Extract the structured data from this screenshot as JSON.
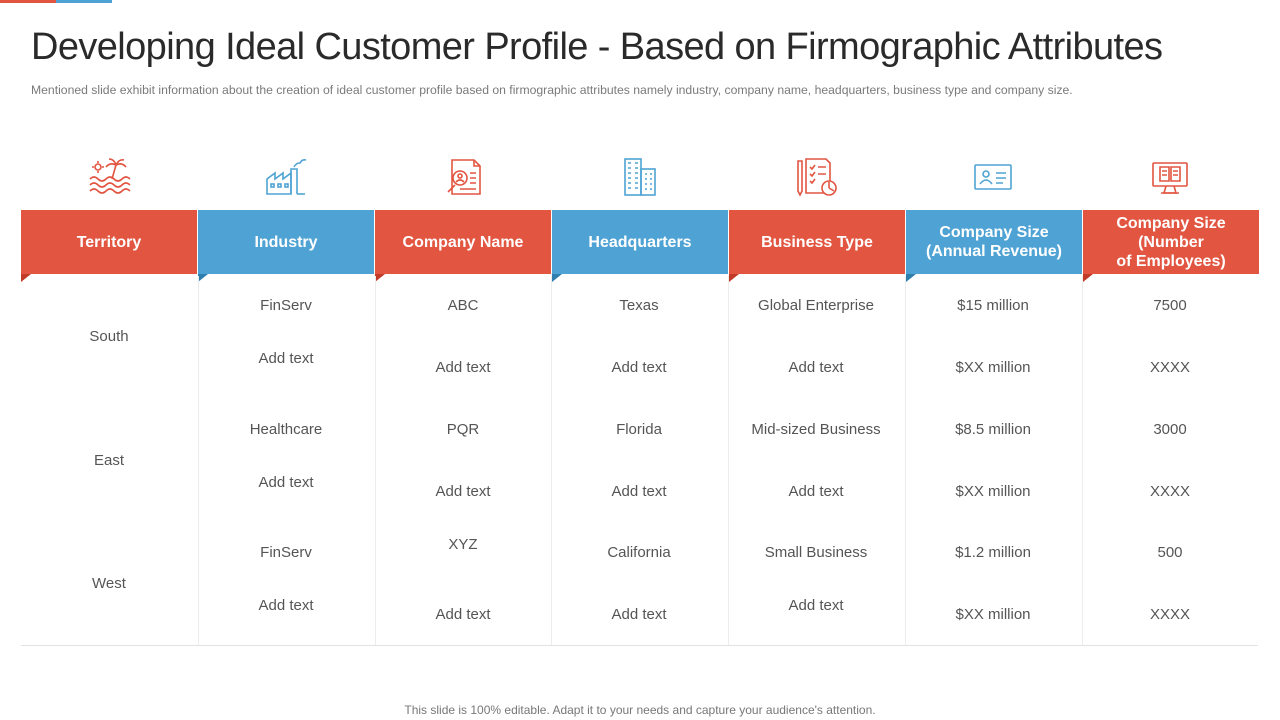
{
  "title": "Developing Ideal Customer Profile - Based on Firmographic Attributes",
  "subtitle": "Mentioned slide exhibit information  about the creation of ideal customer profile  based on firmographic  attributes namely industry, company name, headquarters,  business type and company size.",
  "colors": {
    "red": "#e25540",
    "blue": "#4fa3d4"
  },
  "columns": [
    {
      "label": "Territory",
      "icon": "wave-palm-icon",
      "color": "red"
    },
    {
      "label": "Industry",
      "icon": "factory-icon",
      "color": "blue"
    },
    {
      "label": "Company Name",
      "icon": "id-document-search-icon",
      "color": "red"
    },
    {
      "label": "Headquarters",
      "icon": "office-building-icon",
      "color": "blue"
    },
    {
      "label": "Business Type",
      "icon": "clipboard-chart-icon",
      "color": "red"
    },
    {
      "label": "Company Size\n(Annual Revenue)",
      "icon": "id-card-icon",
      "color": "blue"
    },
    {
      "label": "Company Size\n(Number\nof Employees)",
      "icon": "computer-monitor-icon",
      "color": "red"
    }
  ],
  "territories": [
    "South",
    "East",
    "West"
  ],
  "rows": [
    {
      "industry": "FinServ",
      "company_name": "ABC",
      "headquarters": "Texas",
      "business_type": "Global Enterprise",
      "revenue": "$15 million",
      "employees": "7500"
    },
    {
      "industry": "Add text",
      "company_name": "Add text",
      "headquarters": "Add text",
      "business_type": "Add text",
      "revenue": "$XX million",
      "employees": "XXXX"
    },
    {
      "industry": "Healthcare",
      "company_name": "PQR",
      "headquarters": "Florida",
      "business_type": "Mid-sized Business",
      "revenue": "$8.5 million",
      "employees": "3000"
    },
    {
      "industry": "Add text",
      "company_name": "Add text",
      "headquarters": "Add text",
      "business_type": "Add text",
      "revenue": "$XX million",
      "employees": "XXXX"
    },
    {
      "industry": "FinServ",
      "company_name": "XYZ",
      "headquarters": "California",
      "business_type": "Small Business",
      "revenue": "$1.2 million",
      "employees": "500"
    },
    {
      "industry": "Add text",
      "company_name": "Add text",
      "headquarters": "Add text",
      "business_type": "Add text",
      "revenue": "$XX million",
      "employees": "XXXX"
    }
  ],
  "footer": "This slide is 100% editable. Adapt it to your needs and capture your audience's attention."
}
